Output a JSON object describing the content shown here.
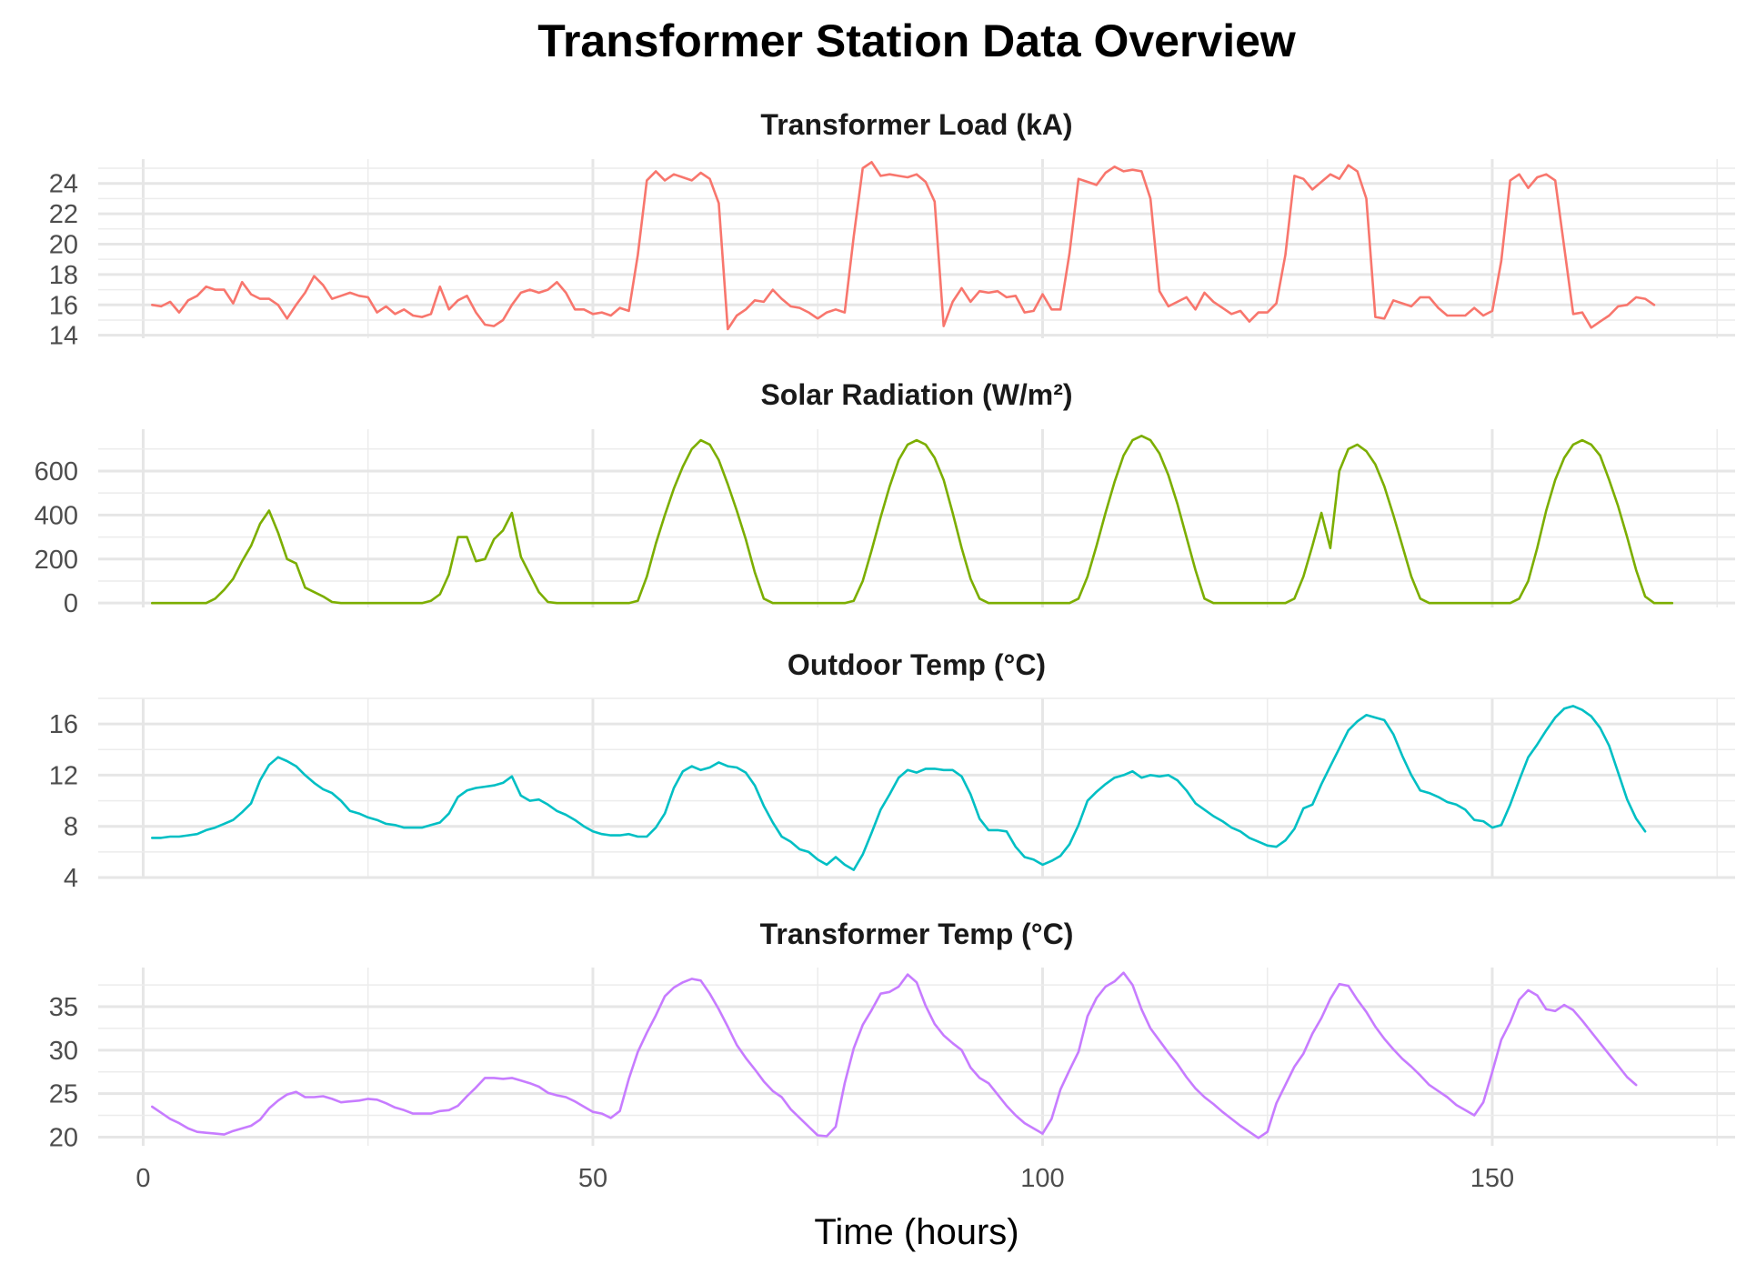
{
  "chart_data": {
    "type": "line",
    "title": "Transformer Station Data Overview",
    "xlabel": "Time (hours)",
    "xlim": [
      -5,
      177
    ],
    "xticks": [
      0,
      50,
      100,
      150
    ],
    "x_start": 1,
    "x_step": 1,
    "panels": [
      {
        "name": "Transformer Load (kA)",
        "color": "#F8766D",
        "ylim": [
          13.8,
          25.6
        ],
        "yticks": [
          14,
          16,
          18,
          20,
          22,
          24
        ],
        "values": [
          16.0,
          15.9,
          16.2,
          15.5,
          16.3,
          16.6,
          17.2,
          17.0,
          17.0,
          16.1,
          17.5,
          16.7,
          16.4,
          16.4,
          16.0,
          15.1,
          16.0,
          16.8,
          17.9,
          17.3,
          16.4,
          16.6,
          16.8,
          16.6,
          16.5,
          15.5,
          15.9,
          15.4,
          15.7,
          15.3,
          15.2,
          15.4,
          17.2,
          15.7,
          16.3,
          16.6,
          15.5,
          14.7,
          14.6,
          15.0,
          16.0,
          16.8,
          17.0,
          16.8,
          17.0,
          17.5,
          16.8,
          15.7,
          15.7,
          15.4,
          15.5,
          15.3,
          15.8,
          15.6,
          19.3,
          24.2,
          24.8,
          24.2,
          24.6,
          24.4,
          24.2,
          24.7,
          24.3,
          22.7,
          14.4,
          15.3,
          15.7,
          16.3,
          16.2,
          17.0,
          16.4,
          15.9,
          15.8,
          15.5,
          15.1,
          15.5,
          15.7,
          15.5,
          20.5,
          25.0,
          25.4,
          24.5,
          24.6,
          24.5,
          24.4,
          24.6,
          24.1,
          22.8,
          14.6,
          16.2,
          17.1,
          16.2,
          16.9,
          16.8,
          16.9,
          16.5,
          16.6,
          15.5,
          15.6,
          16.7,
          15.7,
          15.7,
          19.4,
          24.3,
          24.1,
          23.9,
          24.7,
          25.1,
          24.8,
          24.9,
          24.8,
          23.0,
          16.9,
          15.9,
          16.2,
          16.5,
          15.7,
          16.8,
          16.2,
          15.8,
          15.4,
          15.6,
          14.9,
          15.5,
          15.5,
          16.1,
          19.3,
          24.5,
          24.3,
          23.6,
          24.1,
          24.6,
          24.3,
          25.2,
          24.8,
          23.0,
          15.2,
          15.1,
          16.3,
          16.1,
          15.9,
          16.5,
          16.5,
          15.8,
          15.3,
          15.3,
          15.3,
          15.8,
          15.3,
          15.6,
          18.9,
          24.2,
          24.6,
          23.7,
          24.4,
          24.6,
          24.2,
          19.8,
          15.4,
          15.5,
          14.5,
          14.9,
          15.3,
          15.9,
          16.0,
          16.5,
          16.4,
          16.0
        ]
      },
      {
        "name": "Solar Radiation (W/m²)",
        "color": "#7CAE00",
        "ylim": [
          -20,
          790
        ],
        "yticks": [
          0,
          200,
          400,
          600
        ],
        "values": [
          0,
          0,
          0,
          0,
          0,
          0,
          0,
          20,
          60,
          110,
          190,
          260,
          360,
          420,
          320,
          200,
          180,
          70,
          50,
          30,
          5,
          0,
          0,
          0,
          0,
          0,
          0,
          0,
          0,
          0,
          0,
          10,
          40,
          130,
          300,
          300,
          190,
          200,
          290,
          330,
          410,
          210,
          130,
          50,
          5,
          0,
          0,
          0,
          0,
          0,
          0,
          0,
          0,
          0,
          10,
          120,
          270,
          400,
          520,
          620,
          700,
          740,
          720,
          650,
          540,
          420,
          290,
          140,
          20,
          0,
          0,
          0,
          0,
          0,
          0,
          0,
          0,
          0,
          10,
          100,
          240,
          390,
          530,
          650,
          720,
          740,
          720,
          660,
          560,
          410,
          250,
          110,
          20,
          0,
          0,
          0,
          0,
          0,
          0,
          0,
          0,
          0,
          0,
          20,
          120,
          260,
          410,
          550,
          670,
          740,
          760,
          740,
          680,
          580,
          450,
          300,
          150,
          20,
          0,
          0,
          0,
          0,
          0,
          0,
          0,
          0,
          0,
          20,
          120,
          260,
          410,
          250,
          600,
          700,
          720,
          690,
          630,
          530,
          400,
          260,
          120,
          20,
          0,
          0,
          0,
          0,
          0,
          0,
          0,
          0,
          0,
          0,
          20,
          100,
          250,
          420,
          560,
          660,
          720,
          740,
          720,
          670,
          560,
          440,
          300,
          150,
          30,
          0,
          0,
          0
        ]
      },
      {
        "name": "Outdoor Temp (°C)",
        "color": "#00BFC4",
        "ylim": [
          4.0,
          18.0
        ],
        "yticks": [
          4,
          8,
          12,
          16
        ],
        "values": [
          7.1,
          7.1,
          7.2,
          7.2,
          7.3,
          7.4,
          7.7,
          7.9,
          8.2,
          8.5,
          9.1,
          9.8,
          11.6,
          12.8,
          13.4,
          13.1,
          12.7,
          12.0,
          11.4,
          10.9,
          10.6,
          10.0,
          9.2,
          9.0,
          8.7,
          8.5,
          8.2,
          8.1,
          7.9,
          7.9,
          7.9,
          8.1,
          8.3,
          9.0,
          10.3,
          10.8,
          11.0,
          11.1,
          11.2,
          11.4,
          11.9,
          10.4,
          10.0,
          10.1,
          9.7,
          9.2,
          8.9,
          8.5,
          8.0,
          7.6,
          7.4,
          7.3,
          7.3,
          7.4,
          7.2,
          7.2,
          7.9,
          9.0,
          11.0,
          12.3,
          12.7,
          12.4,
          12.6,
          13.0,
          12.7,
          12.6,
          12.2,
          11.2,
          9.6,
          8.3,
          7.2,
          6.8,
          6.2,
          6.0,
          5.4,
          5.0,
          5.6,
          5.0,
          4.6,
          5.8,
          7.5,
          9.3,
          10.5,
          11.8,
          12.4,
          12.2,
          12.5,
          12.5,
          12.4,
          12.4,
          11.9,
          10.5,
          8.6,
          7.7,
          7.7,
          7.6,
          6.4,
          5.6,
          5.4,
          5.0,
          5.3,
          5.7,
          6.6,
          8.1,
          10.0,
          10.7,
          11.3,
          11.8,
          12.0,
          12.3,
          11.8,
          12.0,
          11.9,
          12.0,
          11.6,
          10.8,
          9.8,
          9.3,
          8.8,
          8.4,
          7.9,
          7.6,
          7.1,
          6.8,
          6.5,
          6.4,
          6.9,
          7.8,
          9.4,
          9.7,
          11.3,
          12.7,
          14.1,
          15.5,
          16.2,
          16.7,
          16.5,
          16.3,
          15.2,
          13.5,
          12.0,
          10.8,
          10.6,
          10.3,
          9.9,
          9.7,
          9.3,
          8.5,
          8.4,
          7.9,
          8.1,
          9.7,
          11.6,
          13.4,
          14.4,
          15.5,
          16.5,
          17.2,
          17.4,
          17.1,
          16.6,
          15.7,
          14.3,
          12.2,
          10.1,
          8.6,
          7.6
        ]
      },
      {
        "name": "Transformer Temp (°C)",
        "color": "#C77CFF",
        "ylim": [
          19.0,
          39.5
        ],
        "yticks": [
          20,
          25,
          30,
          35
        ],
        "values": [
          23.5,
          22.8,
          22.1,
          21.6,
          21.0,
          20.6,
          20.5,
          20.4,
          20.3,
          20.7,
          21.0,
          21.3,
          22.0,
          23.3,
          24.2,
          24.9,
          25.2,
          24.6,
          24.6,
          24.7,
          24.4,
          24.0,
          24.1,
          24.2,
          24.4,
          24.3,
          23.9,
          23.4,
          23.1,
          22.7,
          22.7,
          22.7,
          23.0,
          23.1,
          23.6,
          24.7,
          25.7,
          26.8,
          26.8,
          26.7,
          26.8,
          26.5,
          26.2,
          25.8,
          25.1,
          24.8,
          24.6,
          24.1,
          23.5,
          22.9,
          22.7,
          22.2,
          23.0,
          26.7,
          29.8,
          32.0,
          34.0,
          36.2,
          37.2,
          37.8,
          38.2,
          38.0,
          36.5,
          34.7,
          32.7,
          30.6,
          29.1,
          27.8,
          26.4,
          25.3,
          24.6,
          23.2,
          22.2,
          21.2,
          20.2,
          20.1,
          21.2,
          26.2,
          30.2,
          32.9,
          34.6,
          36.5,
          36.7,
          37.3,
          38.7,
          37.8,
          35.1,
          33.0,
          31.7,
          30.8,
          30.0,
          28.0,
          26.8,
          26.2,
          24.9,
          23.6,
          22.5,
          21.6,
          21.0,
          20.4,
          22.1,
          25.5,
          27.7,
          29.8,
          33.9,
          36.0,
          37.3,
          37.9,
          38.9,
          37.5,
          34.7,
          32.5,
          31.1,
          29.7,
          28.4,
          26.9,
          25.6,
          24.6,
          23.8,
          22.9,
          22.1,
          21.3,
          20.6,
          19.9,
          20.6,
          23.9,
          26.0,
          28.1,
          29.6,
          31.9,
          33.7,
          35.9,
          37.6,
          37.4,
          35.8,
          34.4,
          32.7,
          31.3,
          30.1,
          29.0,
          28.1,
          27.1,
          26.0,
          25.3,
          24.6,
          23.7,
          23.1,
          22.5,
          24.0,
          27.5,
          31.2,
          33.2,
          35.8,
          36.9,
          36.3,
          34.7,
          34.5,
          35.2,
          34.6,
          33.4,
          32.1,
          30.8,
          29.5,
          28.2,
          26.9,
          26.0
        ]
      }
    ]
  }
}
